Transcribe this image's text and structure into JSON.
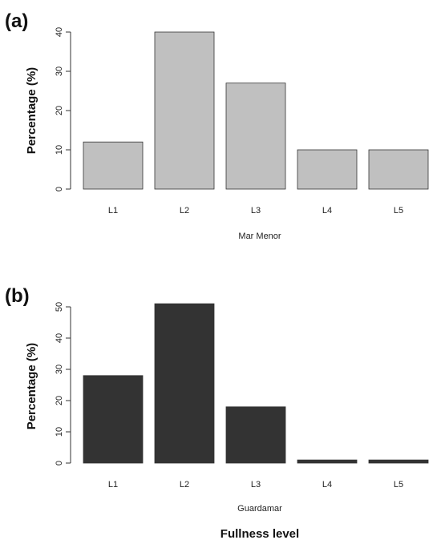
{
  "chart_data": [
    {
      "type": "bar",
      "panel_label": "(a)",
      "categories": [
        "L1",
        "L2",
        "L3",
        "L4",
        "L5"
      ],
      "values": [
        12,
        40,
        27,
        10,
        10
      ],
      "xlabel": "Mar Menor",
      "ylabel": "Percentage (%)",
      "ylim": [
        0,
        40
      ],
      "yticks": [
        0,
        10,
        20,
        30,
        40
      ],
      "bar_color": "#c0c0c0",
      "grid": false
    },
    {
      "type": "bar",
      "panel_label": "(b)",
      "categories": [
        "L1",
        "L2",
        "L3",
        "L4",
        "L5"
      ],
      "values": [
        28,
        51,
        18,
        1,
        1
      ],
      "xlabel": "Guardamar",
      "ylabel": "Percentage (%)",
      "ylim": [
        0,
        50
      ],
      "yticks": [
        0,
        10,
        20,
        30,
        40,
        50
      ],
      "bar_color": "#333333",
      "grid": false
    }
  ],
  "common_xlabel": "Fullness level"
}
